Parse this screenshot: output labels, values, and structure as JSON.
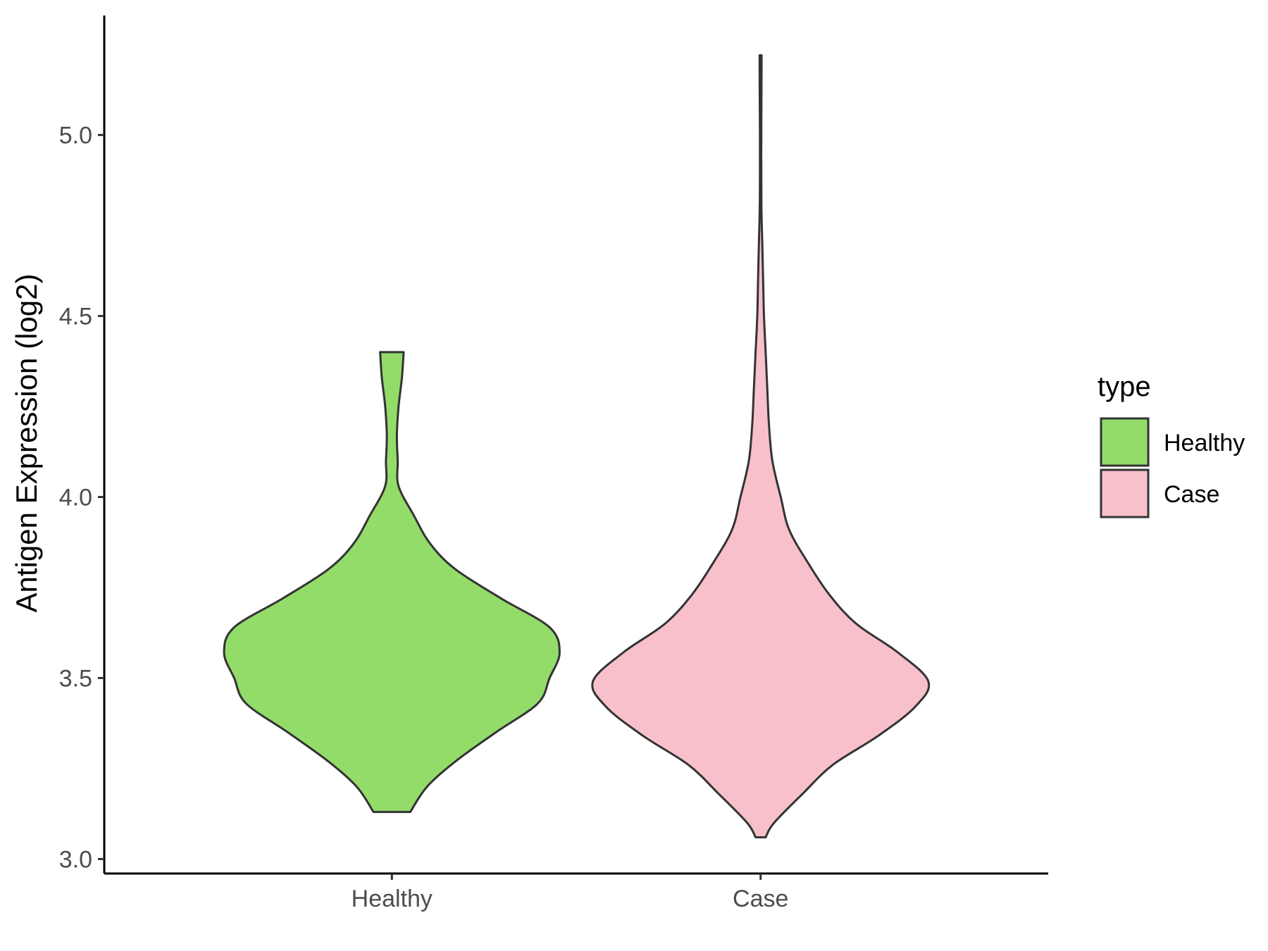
{
  "chart_data": {
    "type": "violin",
    "title": "",
    "xlabel": "",
    "ylabel": "Antigen Expression (log2)",
    "ylim": [
      2.96,
      5.33
    ],
    "yticks": [
      "3.0",
      "3.5",
      "4.0",
      "4.5",
      "5.0"
    ],
    "ytick_values": [
      3.0,
      3.5,
      4.0,
      4.5,
      5.0
    ],
    "categories": [
      "Healthy",
      "Case"
    ],
    "grid": false,
    "legend": {
      "title": "type",
      "position": "right",
      "entries": [
        "Healthy",
        "Case"
      ]
    },
    "series": [
      {
        "name": "Healthy",
        "color": "#93dc6a",
        "min": 3.13,
        "max": 4.4,
        "density_profile": [
          [
            3.13,
            0.11
          ],
          [
            3.2,
            0.21
          ],
          [
            3.27,
            0.38
          ],
          [
            3.35,
            0.62
          ],
          [
            3.43,
            0.87
          ],
          [
            3.5,
            0.94
          ],
          [
            3.57,
            1.0
          ],
          [
            3.64,
            0.94
          ],
          [
            3.72,
            0.65
          ],
          [
            3.8,
            0.38
          ],
          [
            3.87,
            0.23
          ],
          [
            3.95,
            0.13
          ],
          [
            4.03,
            0.04
          ],
          [
            4.1,
            0.035
          ],
          [
            4.17,
            0.03
          ],
          [
            4.25,
            0.04
          ],
          [
            4.33,
            0.06
          ],
          [
            4.4,
            0.07
          ]
        ]
      },
      {
        "name": "Case",
        "color": "#f7c0cb",
        "min": 3.06,
        "max": 5.22,
        "density_profile": [
          [
            3.06,
            0.03
          ],
          [
            3.1,
            0.08
          ],
          [
            3.18,
            0.25
          ],
          [
            3.26,
            0.43
          ],
          [
            3.34,
            0.7
          ],
          [
            3.42,
            0.92
          ],
          [
            3.49,
            1.0
          ],
          [
            3.57,
            0.82
          ],
          [
            3.65,
            0.57
          ],
          [
            3.73,
            0.41
          ],
          [
            3.82,
            0.28
          ],
          [
            3.91,
            0.17
          ],
          [
            4.0,
            0.12
          ],
          [
            4.1,
            0.07
          ],
          [
            4.2,
            0.05
          ],
          [
            4.3,
            0.04
          ],
          [
            4.4,
            0.03
          ],
          [
            4.5,
            0.02
          ],
          [
            4.6,
            0.015
          ],
          [
            4.7,
            0.01
          ],
          [
            4.8,
            0.005
          ],
          [
            4.9,
            0.004
          ],
          [
            5.0,
            0.004
          ],
          [
            5.1,
            0.005
          ],
          [
            5.22,
            0.006
          ]
        ]
      }
    ]
  }
}
